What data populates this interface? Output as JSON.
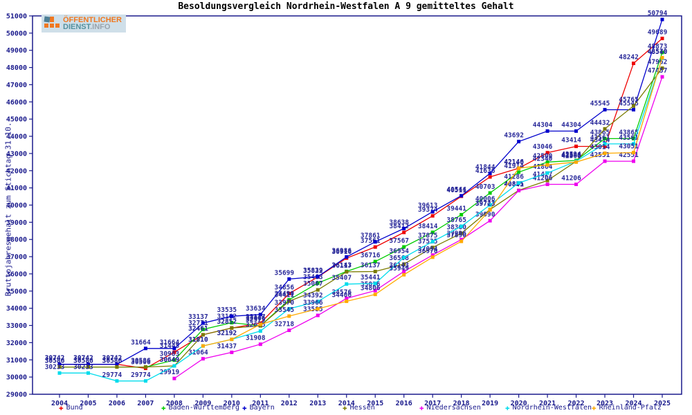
{
  "title": "Besoldungsvergleich Nordrhein-Westfalen A 9 gemitteltes Gehalt",
  "logo": {
    "line1": "ÖFFENTLICHER",
    "line2_part1": "DIENST",
    "line2_part2": ".INFO",
    "icon": "orange-squares-grid-icon"
  },
  "axes": {
    "y_title": "Bruttojahresgehalt zum Stichtag 31.10.",
    "y_tick_labels": [
      "29000",
      "30000",
      "31000",
      "32000",
      "33000",
      "34000",
      "35000",
      "36000",
      "37000",
      "38000",
      "39000",
      "40000",
      "41000",
      "42000",
      "43000",
      "44000",
      "45000",
      "46000",
      "47000",
      "48000",
      "49000",
      "50000",
      "51000"
    ],
    "x_tick_labels": [
      "2004",
      "2005",
      "2006",
      "2007",
      "2008",
      "2009",
      "2010",
      "2011",
      "2012",
      "2013",
      "2014",
      "2015",
      "2016",
      "2017",
      "2018",
      "2019",
      "2020",
      "2021",
      "2022",
      "2023",
      "2024",
      "2025"
    ]
  },
  "legend_marker_glyph": "✚",
  "colors": {
    "frame": "#1a1a8c",
    "tick_text": "#1a1a8c",
    "point_label_text": "#2a2a9a",
    "title_text": "#000000"
  },
  "chart_data": {
    "type": "line",
    "x": [
      2004,
      2005,
      2006,
      2007,
      2008,
      2009,
      2010,
      2011,
      2012,
      2013,
      2014,
      2015,
      2016,
      2017,
      2018,
      2019,
      2020,
      2021,
      2022,
      2023,
      2024,
      2025
    ],
    "xlabel": "",
    "ylabel": "Bruttojahresgehalt zum Stichtag 31.10.",
    "ylim": [
      29000,
      51000
    ],
    "ytick_step": 1000,
    "grid": false,
    "legend_position": "bottom",
    "series": [
      {
        "name": "Bund",
        "color": "#ee0000",
        "values": [
          30742,
          30742,
          30742,
          30506,
          31445,
          32461,
          32852,
          33137,
          34856,
          35822,
          36916,
          37561,
          38412,
          39374,
          40511,
          41636,
          42140,
          43046,
          43414,
          43414,
          48242,
          49689
        ]
      },
      {
        "name": "Baden-Württemberg",
        "color": "#00cc00",
        "values": [
          30586,
          30586,
          30586,
          30586,
          30983,
          32771,
          33162,
          32979,
          34490,
          35463,
          36143,
          36716,
          37567,
          38414,
          39441,
          40703,
          41914,
          42500,
          42594,
          43865,
          43865,
          48873
        ]
      },
      {
        "name": "Bayern",
        "color": "#0000cc",
        "values": [
          30742,
          30742,
          30742,
          31664,
          31664,
          33137,
          33535,
          33634,
          35699,
          35839,
          36986,
          37861,
          38638,
          39613,
          40544,
          41844,
          43692,
          44304,
          44304,
          45545,
          45545,
          50794
        ]
      },
      {
        "name": "Hessen",
        "color": "#7b7b00",
        "values": [
          30586,
          30586,
          30586,
          30586,
          30649,
          32461,
          32852,
          32979,
          34411,
          35067,
          36117,
          36137,
          36568,
          37535,
          38360,
          39743,
          40855,
          41427,
          42543,
          44432,
          45765,
          47962
        ]
      },
      {
        "name": "Niedersachsen",
        "color": "#ee00ee",
        "values": [
          null,
          null,
          null,
          null,
          29919,
          31064,
          31437,
          31908,
          32718,
          33585,
          34576,
          35026,
          36143,
          37094,
          37996,
          39090,
          40841,
          41206,
          41206,
          42551,
          42551,
          47457
        ]
      },
      {
        "name": "Nordrhein-Westfalen",
        "color": "#00dcec",
        "values": [
          30233,
          30233,
          29774,
          29774,
          30649,
          31810,
          32192,
          32675,
          33970,
          34392,
          35407,
          35441,
          36954,
          37875,
          38765,
          40006,
          41286,
          41864,
          42548,
          43561,
          43561,
          48540
        ]
      },
      {
        "name": "Rheinland-Pfalz",
        "color": "#ffaa00",
        "values": [
          null,
          null,
          null,
          null,
          null,
          31810,
          32192,
          33066,
          33545,
          33966,
          34406,
          34806,
          35949,
          36970,
          37890,
          39723,
          42146,
          42340,
          42500,
          43014,
          43051,
          48570
        ]
      }
    ]
  }
}
